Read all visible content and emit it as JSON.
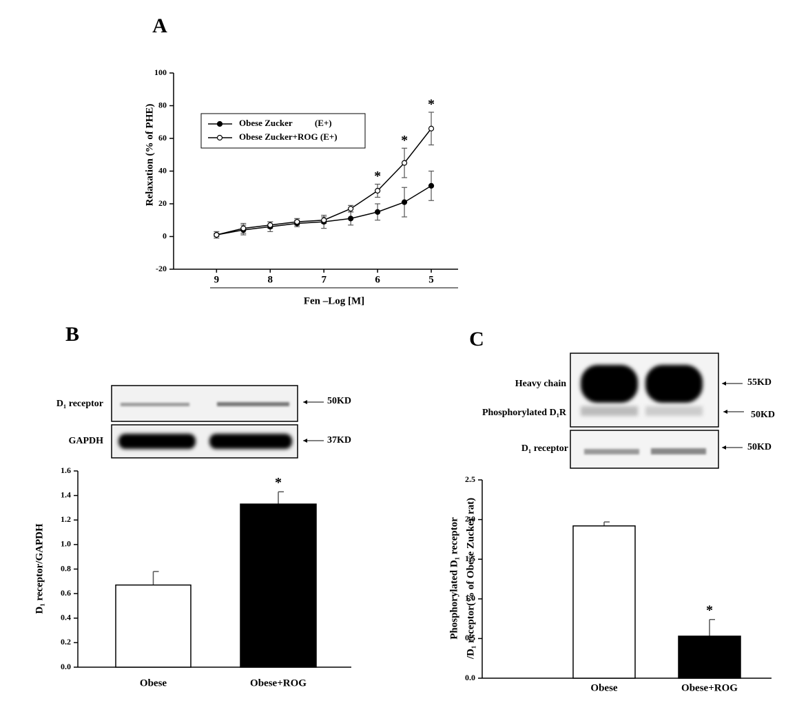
{
  "chart_data": [
    {
      "type": "line",
      "panel": "A",
      "x_label": "Fen –Log [M]",
      "y_label": "Relaxation (% of PHE)",
      "x": [
        9,
        8.5,
        8,
        7.5,
        7,
        6.5,
        6,
        5.5,
        5
      ],
      "xlim": [
        9.8,
        4.5
      ],
      "xticks": [
        9,
        8,
        7,
        6,
        5
      ],
      "ylim": [
        -20,
        100
      ],
      "yticks": [
        -20,
        0,
        20,
        40,
        60,
        80,
        100
      ],
      "series": [
        {
          "name": "Obese Zucker          (E+)",
          "color": "#000000",
          "marker_fill": "#000000",
          "values": [
            1,
            4,
            6,
            8,
            9,
            11,
            15,
            21,
            31
          ],
          "errors": [
            2,
            3,
            3,
            2,
            4,
            4,
            5,
            9,
            9
          ]
        },
        {
          "name": "Obese Zucker+ROG (E+)",
          "color": "#000000",
          "marker_fill": "#ffffff",
          "values": [
            1,
            5,
            7,
            9,
            10,
            17,
            28,
            45,
            66
          ],
          "errors": [
            1,
            3,
            2,
            2,
            2,
            2,
            4,
            9,
            10
          ]
        }
      ],
      "significance_marker": "*",
      "significant": [
        6,
        5.5,
        5
      ],
      "legend": "upper left"
    },
    {
      "type": "bar",
      "panel": "B",
      "y_label": "D₁ receptor/GAPDH",
      "categories": [
        "Obese",
        "Obese+ROG"
      ],
      "values": [
        0.67,
        1.33
      ],
      "errors": [
        0.11,
        0.1
      ],
      "colors": [
        "#ffffff",
        "#000000"
      ],
      "ylim": [
        0,
        1.6
      ],
      "yticks": [
        {
          "value": 0,
          "label": "0.0"
        },
        0.2,
        0.4,
        0.6,
        0.8,
        {
          "value": 1,
          "label": "1.0"
        },
        1.2,
        1.4,
        1.6
      ],
      "significance_marker": "*",
      "significant": [
        "Obese+ROG"
      ]
    },
    {
      "type": "bar",
      "panel": "C",
      "y_label": [
        "Phosphorylated D₁ receptor",
        "/D₁ receptor(% of Obese Zucker rat)"
      ],
      "categories": [
        "Obese",
        "Obese+ROG"
      ],
      "values": [
        1.92,
        0.53
      ],
      "errors": [
        0.05,
        0.21
      ],
      "colors": [
        "#ffffff",
        "#000000"
      ],
      "ylim": [
        0,
        2.5
      ],
      "yticks": [
        {
          "value": 0,
          "label": "0.0"
        },
        0.5,
        {
          "value": 1,
          "label": "1.0"
        },
        1.5,
        {
          "value": 2,
          "label": "2.0"
        },
        2.5
      ],
      "significance_marker": "*",
      "significant": [
        "Obese+ROG"
      ]
    }
  ],
  "blots": {
    "B": {
      "rows": [
        {
          "label": "D₁ receptor",
          "size": "50KD"
        },
        {
          "label": "GAPDH",
          "size": "37KD"
        }
      ]
    },
    "C": {
      "rows": [
        {
          "label": "Heavy chain",
          "size": "55KD"
        },
        {
          "label": "Phosphorylated D₁R",
          "size": "50KD"
        },
        {
          "label": "D₁ receptor",
          "size": "50KD"
        }
      ]
    }
  }
}
